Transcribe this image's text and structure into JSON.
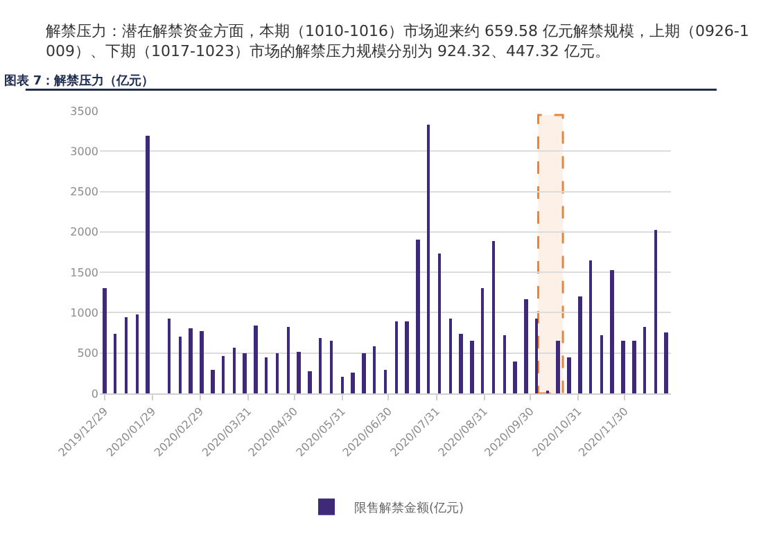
{
  "chart_data": {
    "type": "bar",
    "title": "图表 7：解禁压力（亿元）",
    "annotations": [
      "解禁压力：潜在解禁资金方面，本期（1010-1016）市场迎来约 659.58 亿元解禁规模，上期（0926-1009）、下期（1017-1023）市场的解禁压力规模分别为 924.32、447.32 亿元。"
    ],
    "x": [
      "2019-12-29",
      "2020-01-05",
      "2020-01-12",
      "2020-01-19",
      "2020-01-26",
      "2020-02-02",
      "2020-02-09",
      "2020-02-16",
      "2020-02-23",
      "2020-03-01",
      "2020-03-08",
      "2020-03-15",
      "2020-03-22",
      "2020-03-29",
      "2020-04-05",
      "2020-04-12",
      "2020-04-19",
      "2020-04-26",
      "2020-05-03",
      "2020-05-10",
      "2020-05-17",
      "2020-05-24",
      "2020-05-31",
      "2020-06-07",
      "2020-06-14",
      "2020-06-21",
      "2020-06-28",
      "2020-07-05",
      "2020-07-12",
      "2020-07-19",
      "2020-07-26",
      "2020-08-02",
      "2020-08-09",
      "2020-08-16",
      "2020-08-23",
      "2020-08-30",
      "2020-09-06",
      "2020-09-13",
      "2020-09-20",
      "2020-09-27",
      "2020-10-04",
      "2020-10-11",
      "2020-10-18",
      "2020-10-25",
      "2020-11-01",
      "2020-11-08",
      "2020-11-15",
      "2020-11-22",
      "2020-11-29",
      "2020-12-06",
      "2020-12-13",
      "2020-12-20",
      "2020-12-27"
    ],
    "series": [
      {
        "name": "限售解禁金额(亿元)",
        "color": "#3f2a7a",
        "values": [
          1300,
          740,
          950,
          980,
          3190,
          null,
          930,
          700,
          800,
          780,
          290,
          470,
          560,
          500,
          840,
          450,
          500,
          820,
          510,
          270,
          680,
          660,
          210,
          260,
          500,
          590,
          300,
          900,
          900,
          1900,
          3320,
          1730,
          920,
          730,
          660,
          1300,
          1880,
          720,
          390,
          1170,
          920,
          30,
          660,
          450,
          1200,
          1650,
          720,
          1530,
          660,
          660,
          830,
          2020,
          760
        ]
      }
    ],
    "xlim": [
      "2019-12-26",
      "2020-12-30"
    ],
    "xticks": [
      {
        "value": "2019-12-29",
        "label": "2019/12/29"
      },
      {
        "value": "2020-01-29",
        "label": "2020/01/29"
      },
      {
        "value": "2020-02-29",
        "label": "2020/02/29"
      },
      {
        "value": "2020-03-31",
        "label": "2020/03/31"
      },
      {
        "value": "2020-04-30",
        "label": "2020/04/30"
      },
      {
        "value": "2020-05-31",
        "label": "2020/05/31"
      },
      {
        "value": "2020-06-30",
        "label": "2020/06/30"
      },
      {
        "value": "2020-07-31",
        "label": "2020/07/31"
      },
      {
        "value": "2020-08-31",
        "label": "2020/08/31"
      },
      {
        "value": "2020-09-30",
        "label": "2020/09/30"
      },
      {
        "value": "2020-10-31",
        "label": "2020/10/31"
      },
      {
        "value": "2020-11-30",
        "label": "2020/11/30"
      }
    ],
    "ylim": [
      0,
      3500
    ],
    "yticks": [
      0,
      500,
      1000,
      1500,
      2000,
      2500,
      3000,
      3500
    ],
    "grid": "y",
    "legend": "bottom",
    "bands": [
      {
        "axis": "x",
        "from": "2020-10-05",
        "to": "2020-10-21",
        "color": "#e8853a"
      }
    ]
  }
}
